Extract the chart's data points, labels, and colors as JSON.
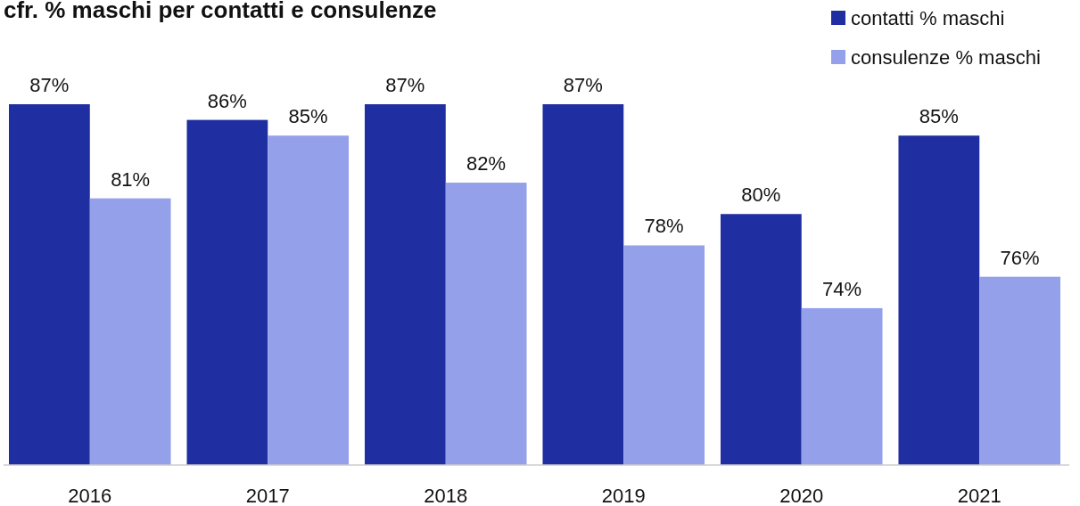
{
  "chart_data": {
    "type": "bar",
    "title": "cfr. % maschi per contatti e consulenze",
    "categories": [
      "2016",
      "2017",
      "2018",
      "2019",
      "2020",
      "2021"
    ],
    "series": [
      {
        "name": "contatti % maschi",
        "color": "#1f2ea0",
        "values": [
          87,
          86,
          87,
          87,
          80,
          85
        ],
        "value_labels": [
          "87%",
          "86%",
          "87%",
          "87%",
          "80%",
          "85%"
        ]
      },
      {
        "name": "consulenze % maschi",
        "color": "#95a0eb",
        "values": [
          81,
          85,
          82,
          78,
          74,
          76
        ],
        "value_labels": [
          "81%",
          "85%",
          "82%",
          "78%",
          "74%",
          "76%"
        ]
      }
    ],
    "ylim": [
      64,
      87
    ],
    "legend": "top right",
    "tick_labels": "x"
  }
}
